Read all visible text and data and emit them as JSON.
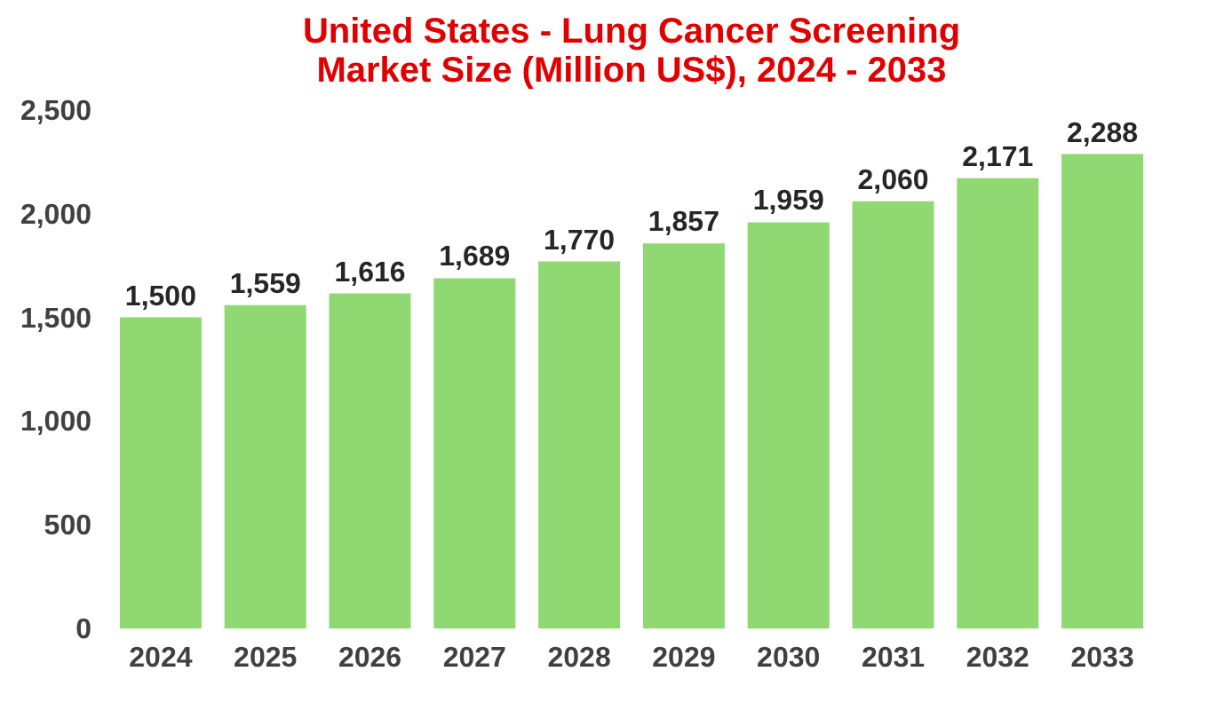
{
  "chart_data": {
    "type": "bar",
    "title": "United States - Lung Cancer Screening Market Size (Million US$), 2024 - 2033",
    "categories": [
      "2024",
      "2025",
      "2026",
      "2027",
      "2028",
      "2029",
      "2030",
      "2031",
      "2032",
      "2033"
    ],
    "values": [
      1500,
      1559,
      1616,
      1689,
      1770,
      1857,
      1959,
      2060,
      2171,
      2288
    ],
    "value_labels": [
      "1,500",
      "1,559",
      "1,616",
      "1,689",
      "1,770",
      "1,857",
      "1,959",
      "2,060",
      "2,171",
      "2,288"
    ],
    "color": "#8fd872",
    "ylim": [
      0,
      2500
    ],
    "yticks": [
      0,
      500,
      {
        "value": 1000,
        "label": "1,000"
      },
      {
        "value": 1500,
        "label": "1,500"
      },
      {
        "value": 2000,
        "label": "2,000"
      },
      {
        "value": 2500,
        "label": "2,500"
      }
    ],
    "grid": false
  }
}
